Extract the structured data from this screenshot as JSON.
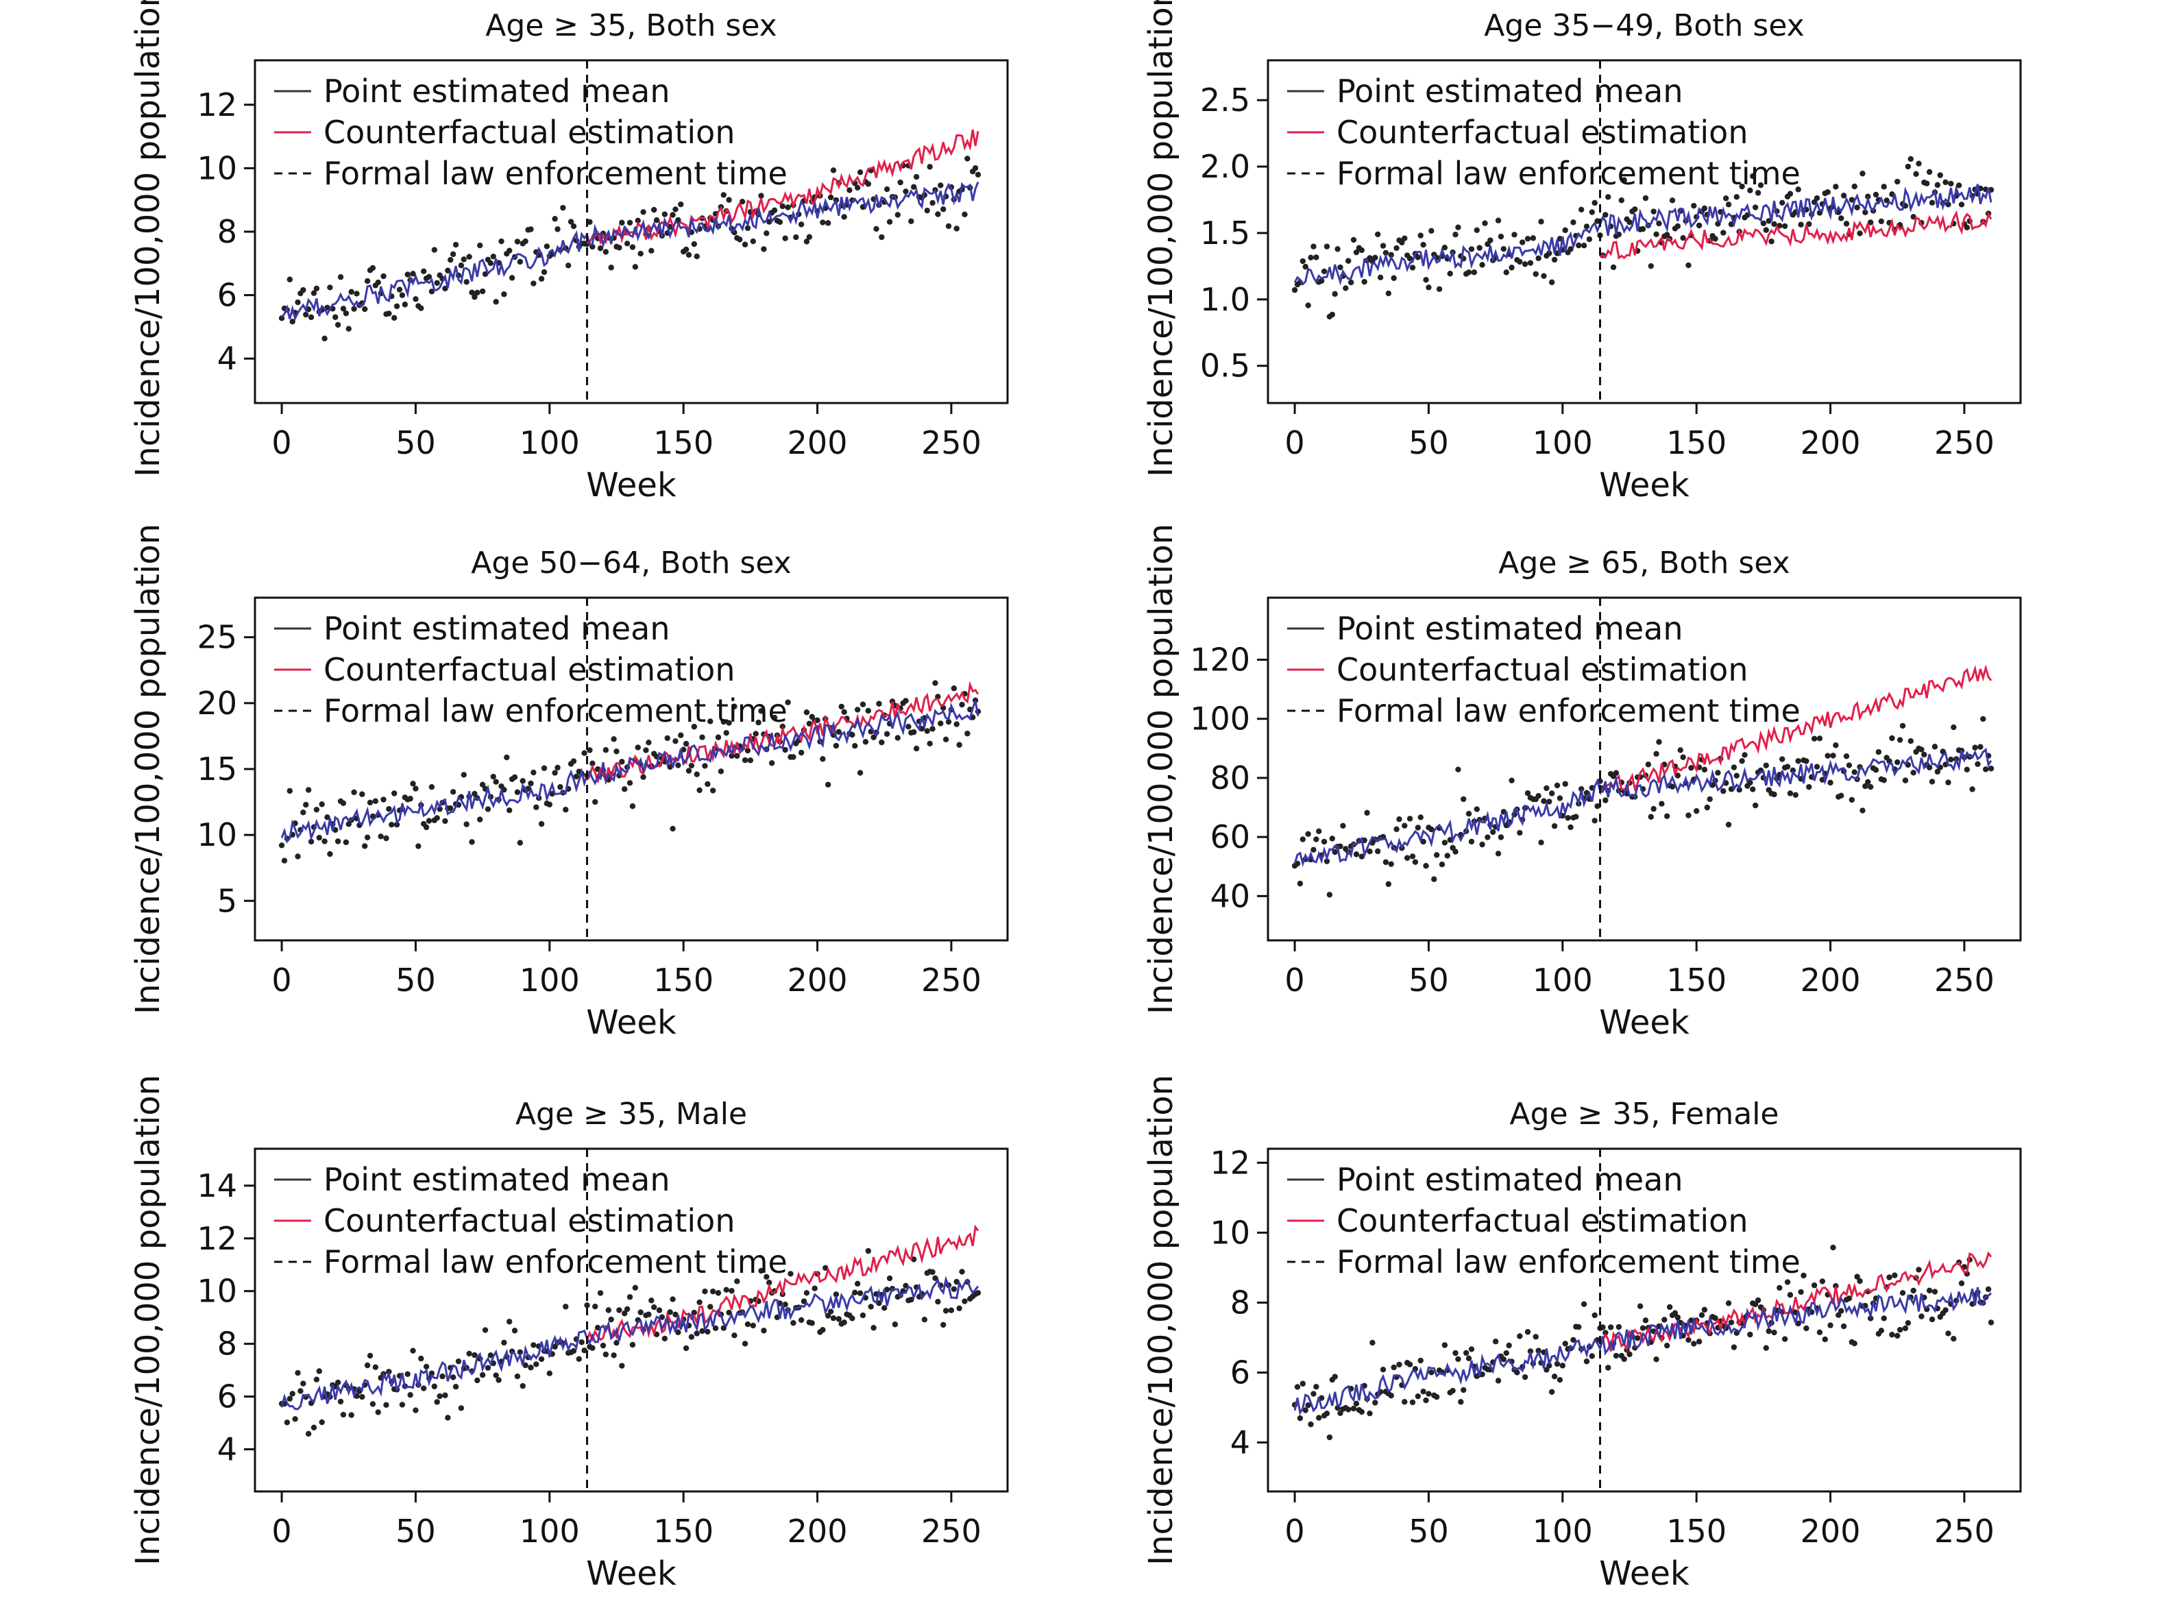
{
  "figure": {
    "legend": {
      "point_label": "Point estimated mean",
      "counterfactual_label": "Counterfactual estimation",
      "enforcement_label": "Formal law enforcement time"
    },
    "colors": {
      "point": "#3a3aa8",
      "counterfactual": "#e0204a",
      "observed": "#222222",
      "enforcement": "#111111"
    }
  },
  "chart_data": [
    {
      "type": "line",
      "title": "Age ≥ 35, Both sex",
      "xlabel": "Week",
      "ylabel": "Incidence/100,000 population",
      "xlim": [
        -10,
        271
      ],
      "ylim": [
        2.6,
        13.4
      ],
      "xticks": [
        0,
        50,
        100,
        150,
        200,
        250
      ],
      "yticks": [
        4,
        6,
        8,
        10,
        12
      ],
      "xtick_labels": [
        "0",
        "50",
        "100",
        "150",
        "200",
        "250"
      ],
      "ytick_labels": [
        "4",
        "6",
        "8",
        "10",
        "12"
      ],
      "intervention_week": 114,
      "x": [
        0,
        50,
        100,
        114,
        150,
        200,
        260
      ],
      "series": [
        {
          "name": "Point estimated mean",
          "values": [
            5.4,
            6.3,
            7.3,
            7.8,
            8.1,
            8.7,
            9.3
          ]
        },
        {
          "name": "Counterfactual estimation",
          "values": [
            null,
            null,
            null,
            7.8,
            8.2,
            9.2,
            11.0
          ]
        }
      ],
      "observed_range": [
        3.8,
        12.1
      ],
      "legend_position": "top-left",
      "grid": false
    },
    {
      "type": "line",
      "title": "Age 35−49, Both sex",
      "xlabel": "Week",
      "ylabel": "Incidence/100,000 population",
      "xlim": [
        -10,
        271
      ],
      "ylim": [
        0.22,
        2.8
      ],
      "xticks": [
        0,
        50,
        100,
        150,
        200,
        250
      ],
      "yticks": [
        0.5,
        1.0,
        1.5,
        2.0,
        2.5
      ],
      "xtick_labels": [
        "0",
        "50",
        "100",
        "150",
        "200",
        "250"
      ],
      "ytick_labels": [
        "0.5",
        "1.0",
        "1.5",
        "2.0",
        "2.5"
      ],
      "intervention_week": 114,
      "x": [
        0,
        50,
        100,
        114,
        150,
        200,
        260
      ],
      "series": [
        {
          "name": "Point estimated mean",
          "values": [
            1.15,
            1.3,
            1.4,
            1.55,
            1.62,
            1.7,
            1.8
          ]
        },
        {
          "name": "Counterfactual estimation",
          "values": [
            null,
            null,
            null,
            1.35,
            1.45,
            1.5,
            1.6
          ]
        }
      ],
      "observed_range": [
        0.48,
        2.65
      ],
      "legend_position": "top-left",
      "grid": false
    },
    {
      "type": "line",
      "title": "Age 50−64, Both sex",
      "xlabel": "Week",
      "ylabel": "Incidence/100,000 population",
      "xlim": [
        -10,
        271
      ],
      "ylim": [
        2,
        28
      ],
      "xticks": [
        0,
        50,
        100,
        150,
        200,
        250
      ],
      "yticks": [
        5,
        10,
        15,
        20,
        25
      ],
      "xtick_labels": [
        "0",
        "50",
        "100",
        "150",
        "200",
        "250"
      ],
      "ytick_labels": [
        "5",
        "10",
        "15",
        "20",
        "25"
      ],
      "intervention_week": 114,
      "x": [
        0,
        50,
        100,
        114,
        150,
        200,
        260
      ],
      "series": [
        {
          "name": "Point estimated mean",
          "values": [
            10.0,
            12.0,
            13.5,
            14.5,
            16.0,
            17.5,
            19.5
          ]
        },
        {
          "name": "Counterfactual estimation",
          "values": [
            null,
            null,
            null,
            14.5,
            16.0,
            18.0,
            21.0
          ]
        }
      ],
      "observed_range": [
        6.5,
        23.5
      ],
      "legend_position": "top-left",
      "grid": false
    },
    {
      "type": "line",
      "title": "Age ≥ 65, Both sex",
      "xlabel": "Week",
      "ylabel": "Incidence/100,000 population",
      "xlim": [
        -10,
        271
      ],
      "ylim": [
        25,
        141
      ],
      "xticks": [
        0,
        50,
        100,
        150,
        200,
        250
      ],
      "yticks": [
        40,
        60,
        80,
        100,
        120
      ],
      "xtick_labels": [
        "0",
        "50",
        "100",
        "150",
        "200",
        "250"
      ],
      "ytick_labels": [
        "40",
        "60",
        "80",
        "100",
        "120"
      ],
      "intervention_week": 114,
      "x": [
        0,
        50,
        100,
        114,
        150,
        200,
        260
      ],
      "series": [
        {
          "name": "Point estimated mean",
          "values": [
            52,
            60,
            70,
            76,
            78,
            82,
            87
          ]
        },
        {
          "name": "Counterfactual estimation",
          "values": [
            null,
            null,
            null,
            76,
            85,
            100,
            116
          ]
        }
      ],
      "observed_range": [
        36,
        128
      ],
      "legend_position": "top-left",
      "grid": false
    },
    {
      "type": "line",
      "title": "Age ≥ 35, Male",
      "xlabel": "Week",
      "ylabel": "Incidence/100,000 population",
      "xlim": [
        -10,
        271
      ],
      "ylim": [
        2.4,
        15.4
      ],
      "xticks": [
        0,
        50,
        100,
        150,
        200,
        250
      ],
      "yticks": [
        4,
        6,
        8,
        10,
        12,
        14
      ],
      "xtick_labels": [
        "0",
        "50",
        "100",
        "150",
        "200",
        "250"
      ],
      "ytick_labels": [
        "4",
        "6",
        "8",
        "10",
        "12",
        "14"
      ],
      "intervention_week": 114,
      "x": [
        0,
        50,
        100,
        114,
        150,
        200,
        260
      ],
      "series": [
        {
          "name": "Point estimated mean",
          "values": [
            5.7,
            6.7,
            7.8,
            8.3,
            8.8,
            9.5,
            10.2
          ]
        },
        {
          "name": "Counterfactual estimation",
          "values": [
            null,
            null,
            null,
            8.3,
            8.9,
            10.5,
            12.1
          ]
        }
      ],
      "observed_range": [
        3.7,
        12.5
      ],
      "legend_position": "top-left",
      "grid": false
    },
    {
      "type": "line",
      "title": "Age ≥ 35, Female",
      "xlabel": "Week",
      "ylabel": "Incidence/100,000 population",
      "xlim": [
        -10,
        271
      ],
      "ylim": [
        2.6,
        12.4
      ],
      "xticks": [
        0,
        50,
        100,
        150,
        200,
        250
      ],
      "yticks": [
        4,
        6,
        8,
        10,
        12
      ],
      "xtick_labels": [
        "0",
        "50",
        "100",
        "150",
        "200",
        "250"
      ],
      "ytick_labels": [
        "4",
        "6",
        "8",
        "10",
        "12"
      ],
      "intervention_week": 114,
      "x": [
        0,
        50,
        100,
        114,
        150,
        200,
        260
      ],
      "series": [
        {
          "name": "Point estimated mean",
          "values": [
            5.0,
            5.9,
            6.5,
            6.8,
            7.3,
            7.8,
            8.2
          ]
        },
        {
          "name": "Counterfactual estimation",
          "values": [
            null,
            null,
            null,
            6.8,
            7.3,
            8.2,
            9.3
          ]
        }
      ],
      "observed_range": [
        3.7,
        11.8
      ],
      "legend_position": "top-left",
      "grid": false
    }
  ]
}
